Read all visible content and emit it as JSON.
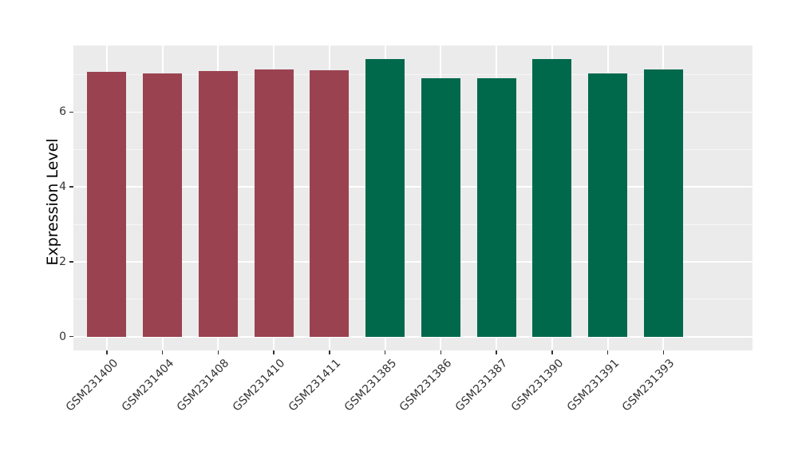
{
  "chart_data": {
    "type": "bar",
    "title": "",
    "xlabel": "",
    "ylabel": "Expression Level",
    "categories": [
      "GSM231400",
      "GSM231404",
      "GSM231408",
      "GSM231410",
      "GSM231411",
      "GSM231385",
      "GSM231386",
      "GSM231387",
      "GSM231390",
      "GSM231391",
      "GSM231393"
    ],
    "values": [
      7.08,
      7.03,
      7.1,
      7.15,
      7.12,
      7.42,
      6.91,
      6.91,
      7.41,
      7.03,
      7.13
    ],
    "bar_groups": [
      0,
      0,
      0,
      0,
      0,
      1,
      1,
      1,
      1,
      1,
      1
    ],
    "group_colors": [
      "#9A4250",
      "#00694C"
    ],
    "ytick_labels": [
      "0",
      "2",
      "4",
      "6"
    ],
    "ytick_values": [
      0,
      2,
      4,
      6
    ],
    "yminor_values": [
      1,
      3,
      5,
      7
    ],
    "ylim": [
      -0.37,
      7.78
    ],
    "x_tick_rotation": -45,
    "legend": "none",
    "grid": "on",
    "panel_bg": "#EBEBEB",
    "grid_major_color": "#FFFFFF",
    "tick_color": "#333333",
    "tick_label_color": "#333333"
  }
}
